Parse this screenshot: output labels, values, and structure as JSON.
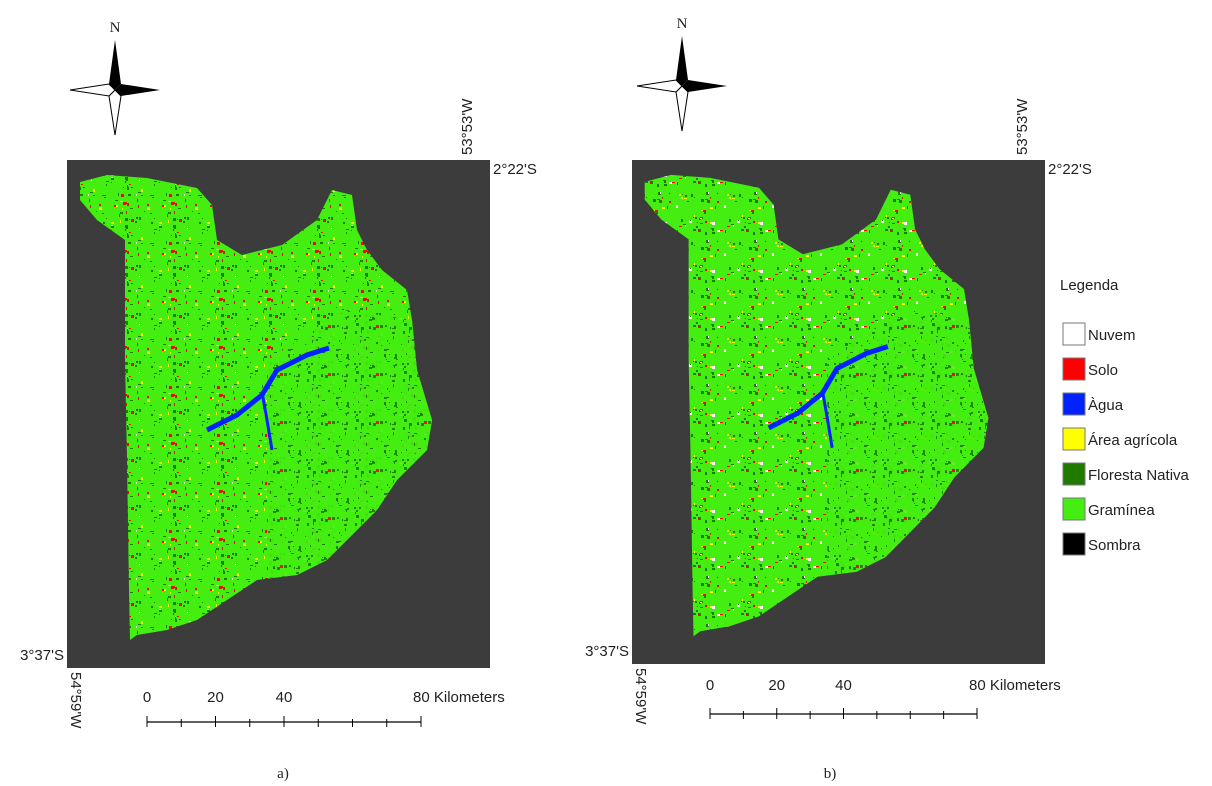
{
  "panels": [
    {
      "label": "a)",
      "north": "N",
      "top_lon": "53°53'W",
      "top_lat": "2°22'S",
      "bottom_lat": "3°37'S",
      "bottom_lon": "54°59'W",
      "scale_labels": [
        "0",
        "20",
        "40",
        "80 Kilometers"
      ]
    },
    {
      "label": "b)",
      "north": "N",
      "top_lon": "53°53'W",
      "top_lat": "2°22'S",
      "bottom_lat": "3°37'S",
      "bottom_lon": "54°59'W",
      "scale_labels": [
        "0",
        "20",
        "40",
        "80 Kilometers"
      ]
    }
  ],
  "legend": {
    "title": "Legenda",
    "items": [
      {
        "name": "Nuvem",
        "color": "#ffffff"
      },
      {
        "name": "Solo",
        "color": "#ff0000"
      },
      {
        "name": "Àgua",
        "color": "#0022ff"
      },
      {
        "name": "Área agrícola",
        "color": "#ffff00"
      },
      {
        "name": "Floresta Nativa",
        "color": "#1f7a00"
      },
      {
        "name": "Gramínea",
        "color": "#44ee11"
      },
      {
        "name": "Sombra",
        "color": "#000000"
      }
    ]
  }
}
